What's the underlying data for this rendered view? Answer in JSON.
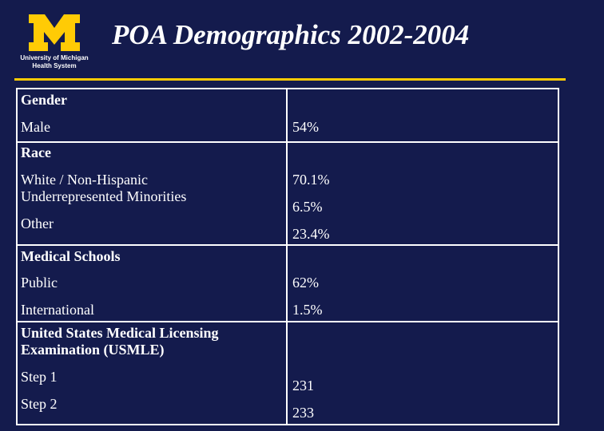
{
  "logo": {
    "university_line": "University of Michigan",
    "health_line": "Health System",
    "color": "#ffcb05"
  },
  "title": "POA Demographics 2002-2004",
  "colors": {
    "background": "#141b4d",
    "accent": "#ffcb05",
    "text": "#ffffff"
  },
  "table": {
    "gender": {
      "heading": "Gender",
      "male_label": "Male",
      "male_value": "54%"
    },
    "race": {
      "heading": "Race",
      "white_label": "White / Non-Hispanic",
      "urm_label": "Underrepresented Minorities",
      "other_label": "Other",
      "white_value": "70.1%",
      "urm_value": "6.5%",
      "other_value": "23.4%"
    },
    "schools": {
      "heading": "Medical Schools",
      "public_label": "Public",
      "public_value": "62%",
      "international_label": "International",
      "international_value": "1.5%"
    },
    "usmle": {
      "heading_line1": "United States Medical Licensing",
      "heading_line2": "Examination (USMLE)",
      "step1_label": "Step 1",
      "step1_value": "231",
      "step2_label": "Step 2",
      "step2_value": "233"
    }
  }
}
